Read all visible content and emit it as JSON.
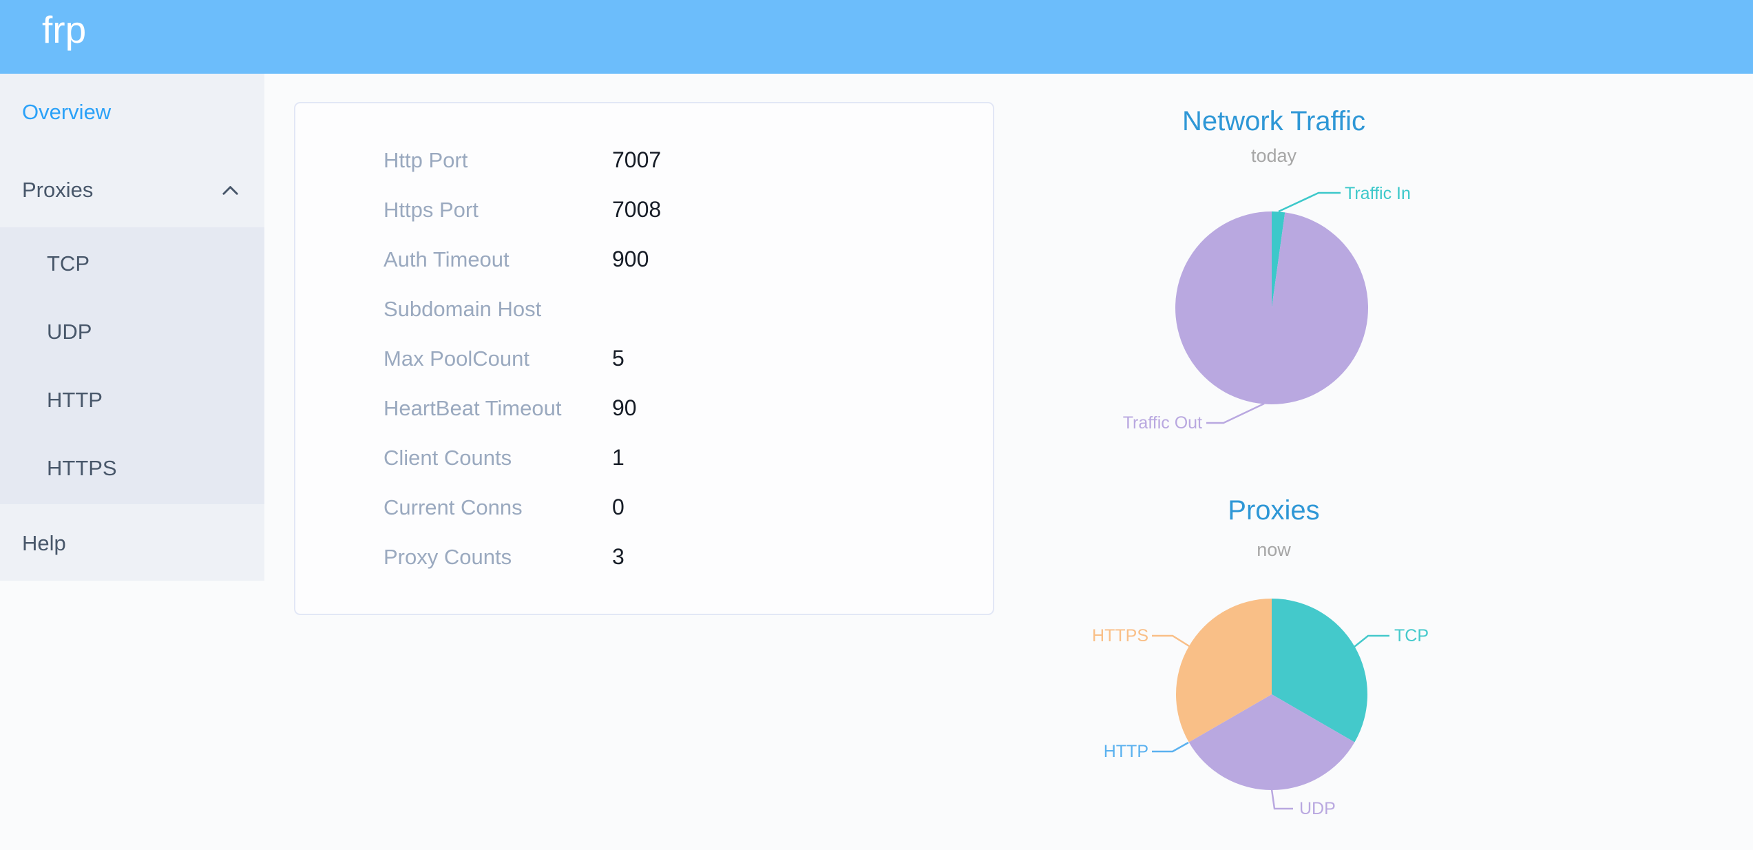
{
  "header": {
    "logo": "frp"
  },
  "colors": {
    "header_bg": "#6CBDFB",
    "active_link": "#2aa1f8",
    "chart_title": "#2e97d6"
  },
  "sidebar": {
    "items": [
      {
        "label": "Overview",
        "active": true
      },
      {
        "label": "Proxies",
        "expanded": true,
        "children": [
          "TCP",
          "UDP",
          "HTTP",
          "HTTPS"
        ]
      },
      {
        "label": "Help"
      }
    ]
  },
  "overview": {
    "rows": [
      {
        "label": "Http Port",
        "value": "7007"
      },
      {
        "label": "Https Port",
        "value": "7008"
      },
      {
        "label": "Auth Timeout",
        "value": "900"
      },
      {
        "label": "Subdomain Host",
        "value": ""
      },
      {
        "label": "Max PoolCount",
        "value": "5"
      },
      {
        "label": "HeartBeat Timeout",
        "value": "90"
      },
      {
        "label": "Client Counts",
        "value": "1"
      },
      {
        "label": "Current Conns",
        "value": "0"
      },
      {
        "label": "Proxy Counts",
        "value": "3"
      }
    ]
  },
  "chart_data": [
    {
      "type": "pie",
      "title": "Network Traffic",
      "subtitle": "today",
      "legend_position": "none",
      "series": [
        {
          "name": "Traffic In",
          "value": 2.2,
          "unit": "percent",
          "color": "#3cc8ca"
        },
        {
          "name": "Traffic Out",
          "value": 97.8,
          "unit": "percent",
          "color": "#b9a8e0"
        }
      ]
    },
    {
      "type": "pie",
      "title": "Proxies",
      "subtitle": "now",
      "legend_position": "none",
      "series": [
        {
          "name": "TCP",
          "value": 1,
          "color": "#44c9cb"
        },
        {
          "name": "UDP",
          "value": 1,
          "color": "#b9a8e0"
        },
        {
          "name": "HTTP",
          "value": 0,
          "color": "#5ab1ef"
        },
        {
          "name": "HTTPS",
          "value": 1,
          "color": "#f9bf87"
        }
      ]
    }
  ]
}
